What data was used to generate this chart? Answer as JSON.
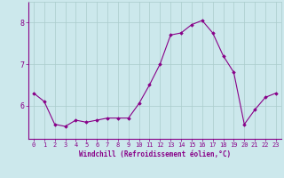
{
  "x": [
    0,
    1,
    2,
    3,
    4,
    5,
    6,
    7,
    8,
    9,
    10,
    11,
    12,
    13,
    14,
    15,
    16,
    17,
    18,
    19,
    20,
    21,
    22,
    23
  ],
  "y": [
    6.3,
    6.1,
    5.55,
    5.5,
    5.65,
    5.6,
    5.65,
    5.7,
    5.7,
    5.7,
    6.05,
    6.5,
    7.0,
    7.7,
    7.75,
    7.95,
    8.05,
    7.75,
    7.2,
    6.8,
    5.55,
    5.9,
    6.2,
    6.3
  ],
  "line_color": "#880088",
  "marker": "D",
  "marker_size": 1.8,
  "bg_color": "#cce8ec",
  "grid_color": "#aacccc",
  "tick_color": "#880088",
  "label_color": "#880088",
  "xlabel": "Windchill (Refroidissement éolien,°C)",
  "xlabel_fontsize": 5.5,
  "tick_fontsize": 5,
  "ytick_labels": [
    "6",
    "7",
    "8"
  ],
  "ytick_values": [
    6,
    7,
    8
  ],
  "ylim": [
    5.2,
    8.5
  ],
  "xlim": [
    -0.5,
    23.5
  ]
}
